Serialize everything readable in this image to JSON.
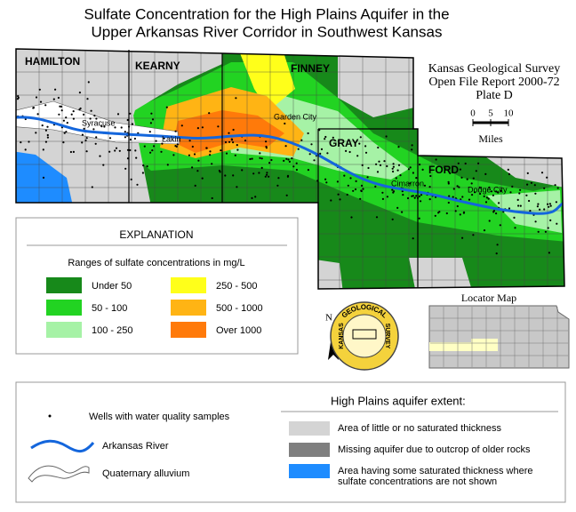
{
  "title": [
    "Sulfate Concentration for the High Plains Aquifer in the",
    "Upper Arkansas River Corridor in Southwest Kansas"
  ],
  "map": {
    "counties": [
      "HAMILTON",
      "KEARNY",
      "FINNEY",
      "GRAY",
      "FORD"
    ],
    "towns": [
      "Syracuse",
      "Lakin",
      "Garden City",
      "Cimarron",
      "Dodge City"
    ]
  },
  "report": [
    "Kansas Geological Survey",
    "Open File Report 2000-72",
    "Plate D"
  ],
  "scale": {
    "ticks": [
      0,
      5,
      10
    ],
    "unit": "Miles"
  },
  "north": "N",
  "seal": [
    "KANSAS",
    "GEOLOGICAL",
    "SURVEY"
  ],
  "explanation": {
    "title": "EXPLANATION",
    "subtitle": "Ranges of sulfate concentrations in mg/L",
    "items": [
      {
        "label": "Under 50",
        "color": "#17891a"
      },
      {
        "label": "50 - 100",
        "color": "#22d322"
      },
      {
        "label": "100 - 250",
        "color": "#a6f2a6"
      },
      {
        "label": "250 - 500",
        "color": "#ffff1a"
      },
      {
        "label": "500 - 1000",
        "color": "#ffb414"
      },
      {
        "label": "Over 1000",
        "color": "#ff7a0a"
      }
    ]
  },
  "locator": {
    "title": "Locator Map"
  },
  "symbols": [
    "Wells with water quality samples",
    "Arkansas River",
    "Quaternary alluvium"
  ],
  "extent": {
    "title": "High Plains aquifer extent:",
    "items": [
      {
        "lines": [
          "Area of little or no saturated thickness"
        ],
        "color": "#d4d4d4"
      },
      {
        "lines": [
          "Missing aquifer due to outcrop of older rocks"
        ],
        "color": "#7f7f7f"
      },
      {
        "lines": [
          "Area having some saturated thickness where",
          "sulfate concentrations are not shown"
        ],
        "color": "#1e8cff"
      }
    ]
  }
}
